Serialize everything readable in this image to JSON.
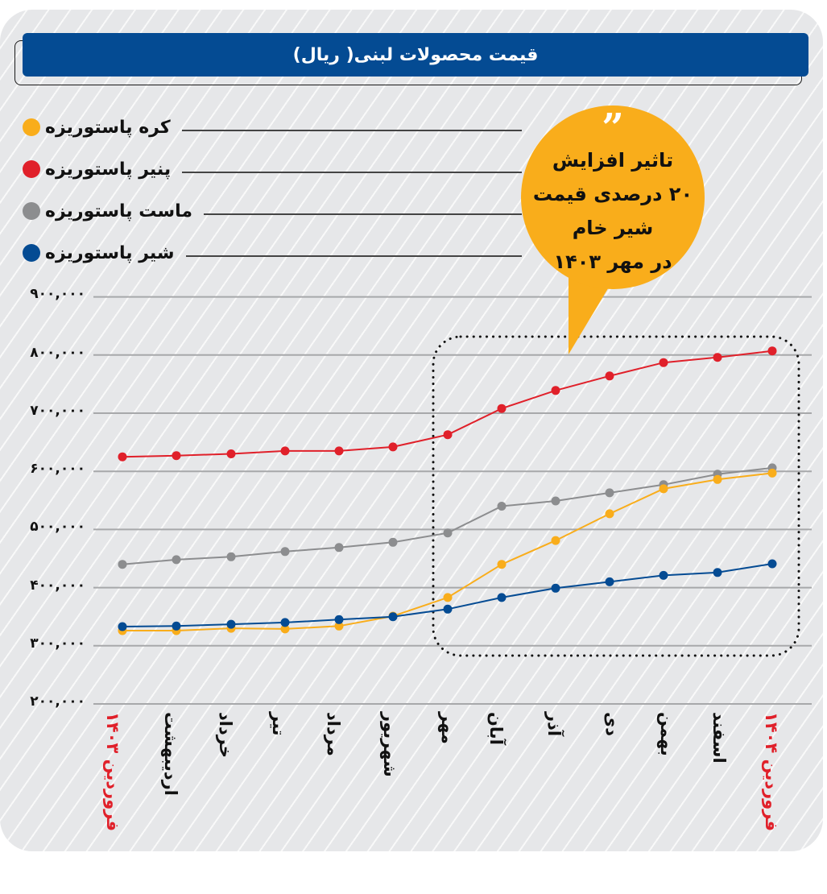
{
  "title": "قیمت محصولات لبنی( ریال)",
  "legend": [
    {
      "label": "کره پاستوریزه",
      "color": "#f9ad1b"
    },
    {
      "label": "پنیر پاستوریزه",
      "color": "#e0202a"
    },
    {
      "label": "ماست پاستوریزه",
      "color": "#8c8d8f"
    },
    {
      "label": "شیر پاستوریزه",
      "color": "#044b93"
    }
  ],
  "callout": {
    "quote_mark": "”",
    "lines": [
      "تاثیر افزایش",
      "۲۰ درصدی قیمت",
      "شیر خام",
      "در مهر ۱۴۰۳"
    ]
  },
  "y_ticks": [
    "۹۰۰,۰۰۰",
    "۸۰۰,۰۰۰",
    "۷۰۰,۰۰۰",
    "۶۰۰,۰۰۰",
    "۵۰۰,۰۰۰",
    "۴۰۰,۰۰۰",
    "۳۰۰,۰۰۰",
    "۲۰۰,۰۰۰"
  ],
  "x_labels": [
    "فروردین ۱۴۰۳",
    "اردیبهشت",
    "خرداد",
    "تیر",
    "مرداد",
    "شهریور",
    "مهر",
    "آبان",
    "آذر",
    "دی",
    "بهمن",
    "اسفند",
    "فروردین ۱۴۰۴"
  ],
  "chart_data": {
    "type": "line",
    "title": "قیمت محصولات لبنی( ریال)",
    "xlabel": "",
    "ylabel": "ریال",
    "ylim": [
      200000,
      900000
    ],
    "grid": true,
    "legend_position": "top-left",
    "categories": [
      "فروردین ۱۴۰۳",
      "اردیبهشت",
      "خرداد",
      "تیر",
      "مرداد",
      "شهریور",
      "مهر",
      "آبان",
      "آذر",
      "دی",
      "بهمن",
      "اسفند",
      "فروردین ۱۴۰۴"
    ],
    "series": [
      {
        "name": "کره پاستوریزه",
        "color": "#f9ad1b",
        "values": [
          326000,
          326000,
          330000,
          329000,
          334000,
          351000,
          383000,
          440000,
          481000,
          527000,
          570000,
          586000,
          597000
        ]
      },
      {
        "name": "پنیر پاستوریزه",
        "color": "#e0202a",
        "values": [
          625000,
          627000,
          630000,
          635000,
          635000,
          642000,
          663000,
          708000,
          739000,
          764000,
          787000,
          796000,
          807000
        ]
      },
      {
        "name": "ماست پاستوریزه",
        "color": "#8c8d8f",
        "values": [
          440000,
          448000,
          453000,
          462000,
          469000,
          478000,
          494000,
          540000,
          549000,
          563000,
          577000,
          595000,
          606000
        ]
      },
      {
        "name": "شیر پاستوریزه",
        "color": "#044b93",
        "values": [
          333000,
          334000,
          337000,
          340000,
          345000,
          350000,
          363000,
          383000,
          399000,
          410000,
          421000,
          426000,
          441000
        ]
      }
    ],
    "annotations": [
      {
        "type": "callout",
        "text": "تاثیر افزایش ۲۰ درصدی قیمت شیر خام در مهر ۱۴۰۳"
      },
      {
        "type": "dotted-box",
        "from": "مهر",
        "to": "فروردین ۱۴۰۴"
      }
    ]
  }
}
